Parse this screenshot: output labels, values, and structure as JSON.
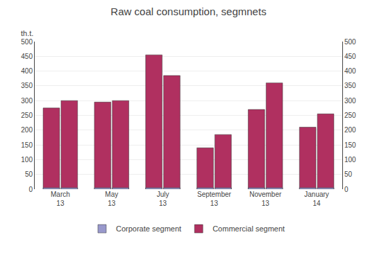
{
  "chart_data": {
    "type": "bar",
    "title": "Raw coal consumption, segmnets",
    "ylabel": "th.t.",
    "categories": [
      "March\n13",
      "May\n13",
      "July\n13",
      "September\n13",
      "November\n13",
      "January\n14"
    ],
    "series": [
      {
        "name": "Commercial segment",
        "color": "#B03060",
        "values": [
          275,
          295,
          455,
          140,
          270,
          210
        ]
      },
      {
        "name": "Corporate segment",
        "color": "#9999CC",
        "values": [
          5,
          5,
          5,
          5,
          5,
          5
        ]
      },
      {
        "name": "Commercial segment",
        "color": "#B03060",
        "values": [
          300,
          300,
          385,
          185,
          360,
          255
        ]
      },
      {
        "name": "Corporate segment",
        "color": "#9999CC",
        "values": [
          5,
          5,
          5,
          5,
          5,
          5
        ]
      }
    ],
    "ylim": [
      0,
      500
    ],
    "yticks": [
      0,
      50,
      100,
      150,
      200,
      250,
      300,
      350,
      400,
      450,
      500
    ],
    "y2lim": [
      0,
      500
    ],
    "y2ticks": [
      0,
      50,
      100,
      150,
      200,
      250,
      300,
      350,
      400,
      450,
      500
    ],
    "grid": true,
    "legend": "bottom"
  }
}
